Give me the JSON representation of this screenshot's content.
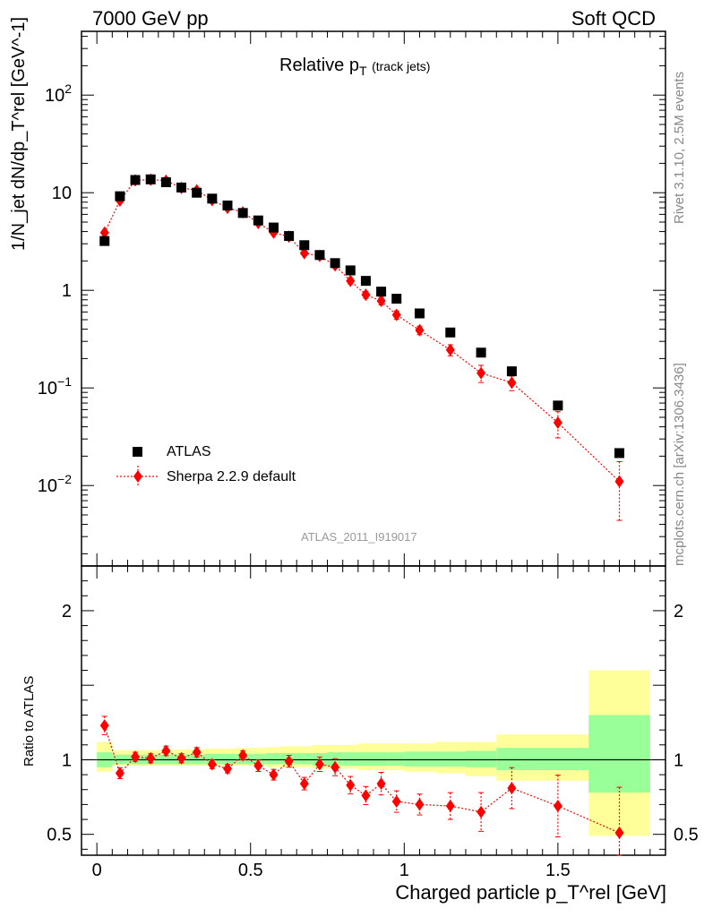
{
  "header": {
    "left": "7000 GeV pp",
    "right": "Soft QCD"
  },
  "side_text": {
    "top": "Rivet 3.1.10,  2.5M events",
    "bottom": "mcplots.cern.ch [arXiv:1306.3436]"
  },
  "title": {
    "main": "Relative p",
    "sub": "T",
    "suffix": "(track jets)"
  },
  "analysis_id": "ATLAS_2011_I919017",
  "y_label_main": "1/N_jet dN/dp_T^rel [GeV^-1]",
  "y_label_ratio": "Ratio to ATLAS",
  "x_label": "Charged particle p_T^rel [GeV]",
  "legend": {
    "data_label": "ATLAS",
    "mc_label": "Sherpa 2.2.9 default"
  },
  "colors": {
    "data": "#000000",
    "mc": "#ff0000",
    "band_inner": "#99ff99",
    "band_outer": "#ffff99"
  },
  "chart_data": [
    {
      "type": "scatter",
      "panel": "main",
      "yscale": "log",
      "xlim": [
        -0.05,
        1.85
      ],
      "ylim": [
        0.0015,
        450
      ],
      "x_ticks": [
        0,
        0.5,
        1,
        1.5
      ],
      "x_tick_labels": [
        "0",
        "0.5",
        "1",
        "1.5"
      ],
      "series": [
        {
          "name": "ATLAS",
          "marker": "square",
          "x": [
            0.025,
            0.075,
            0.125,
            0.175,
            0.225,
            0.275,
            0.325,
            0.375,
            0.425,
            0.475,
            0.525,
            0.575,
            0.625,
            0.675,
            0.725,
            0.775,
            0.825,
            0.875,
            0.925,
            0.975,
            1.05,
            1.15,
            1.25,
            1.35,
            1.5,
            1.7
          ],
          "y": [
            3.2,
            9.2,
            13.5,
            13.7,
            12.8,
            11.3,
            10.0,
            8.7,
            7.4,
            6.2,
            5.2,
            4.4,
            3.6,
            2.9,
            2.3,
            1.9,
            1.6,
            1.25,
            0.97,
            0.82,
            0.58,
            0.37,
            0.23,
            0.148,
            0.066,
            0.0215
          ]
        },
        {
          "name": "Sherpa 2.2.9 default",
          "marker": "diamond",
          "x": [
            0.025,
            0.075,
            0.125,
            0.175,
            0.225,
            0.275,
            0.325,
            0.375,
            0.425,
            0.475,
            0.525,
            0.575,
            0.625,
            0.675,
            0.725,
            0.775,
            0.825,
            0.875,
            0.925,
            0.975,
            1.05,
            1.15,
            1.25,
            1.35,
            1.5,
            1.7
          ],
          "y": [
            3.9,
            8.3,
            13.4,
            13.6,
            13.3,
            11.2,
            10.6,
            8.4,
            7.0,
            6.3,
            4.9,
            3.9,
            3.55,
            2.4,
            2.25,
            1.8,
            1.25,
            0.9,
            0.78,
            0.56,
            0.39,
            0.245,
            0.142,
            0.113,
            0.044,
            0.011
          ],
          "yerr": [
            0.05,
            0.04,
            0.03,
            0.03,
            0.03,
            0.03,
            0.03,
            0.03,
            0.03,
            0.03,
            0.04,
            0.04,
            0.04,
            0.05,
            0.05,
            0.06,
            0.07,
            0.08,
            0.09,
            0.1,
            0.1,
            0.13,
            0.2,
            0.17,
            0.3,
            0.6
          ]
        }
      ]
    },
    {
      "type": "scatter",
      "panel": "ratio",
      "xlim": [
        -0.05,
        1.85
      ],
      "ylim": [
        0.36,
        2.3
      ],
      "y_ticks": [
        0.5,
        1,
        2
      ],
      "y_tick_labels": [
        "0.5",
        "1",
        "2"
      ],
      "x_ticks": [
        0,
        0.5,
        1,
        1.5
      ],
      "x_tick_labels": [
        "0",
        "0.5",
        "1",
        "1.5"
      ],
      "bands": {
        "edges": [
          0.0,
          0.05,
          0.1,
          0.15,
          0.2,
          0.25,
          0.3,
          0.35,
          0.4,
          0.45,
          0.5,
          0.55,
          0.6,
          0.65,
          0.7,
          0.75,
          0.8,
          0.85,
          0.9,
          0.95,
          1.0,
          1.1,
          1.2,
          1.3,
          1.4,
          1.6,
          1.8
        ],
        "inner_lo": [
          0.95,
          0.97,
          0.97,
          0.97,
          0.97,
          0.97,
          0.97,
          0.97,
          0.97,
          0.97,
          0.97,
          0.97,
          0.97,
          0.97,
          0.96,
          0.96,
          0.96,
          0.96,
          0.96,
          0.96,
          0.955,
          0.955,
          0.95,
          0.93,
          0.93,
          0.78
        ],
        "inner_hi": [
          1.05,
          1.035,
          1.035,
          1.035,
          1.035,
          1.035,
          1.035,
          1.04,
          1.04,
          1.04,
          1.04,
          1.045,
          1.045,
          1.045,
          1.045,
          1.05,
          1.05,
          1.05,
          1.05,
          1.05,
          1.055,
          1.055,
          1.06,
          1.08,
          1.08,
          1.3
        ],
        "outer_lo": [
          0.92,
          0.96,
          0.96,
          0.96,
          0.96,
          0.96,
          0.96,
          0.96,
          0.96,
          0.96,
          0.96,
          0.95,
          0.95,
          0.95,
          0.94,
          0.94,
          0.94,
          0.93,
          0.93,
          0.93,
          0.92,
          0.91,
          0.89,
          0.86,
          0.86,
          0.49
        ],
        "outer_hi": [
          1.12,
          1.065,
          1.065,
          1.065,
          1.065,
          1.07,
          1.07,
          1.075,
          1.075,
          1.08,
          1.08,
          1.085,
          1.09,
          1.09,
          1.1,
          1.1,
          1.1,
          1.11,
          1.11,
          1.11,
          1.11,
          1.12,
          1.12,
          1.17,
          1.17,
          1.6
        ]
      },
      "series": [
        {
          "name": "Sherpa 2.2.9 default",
          "marker": "diamond",
          "x": [
            0.025,
            0.075,
            0.125,
            0.175,
            0.225,
            0.275,
            0.325,
            0.375,
            0.425,
            0.475,
            0.525,
            0.575,
            0.625,
            0.675,
            0.725,
            0.775,
            0.825,
            0.875,
            0.925,
            0.975,
            1.05,
            1.15,
            1.25,
            1.35,
            1.5,
            1.7
          ],
          "y": [
            1.23,
            0.91,
            1.02,
            1.01,
            1.06,
            1.01,
            1.05,
            0.97,
            0.94,
            1.03,
            0.96,
            0.9,
            0.99,
            0.84,
            0.97,
            0.95,
            0.83,
            0.76,
            0.84,
            0.72,
            0.7,
            0.69,
            0.65,
            0.81,
            0.69,
            0.51
          ],
          "yerr": [
            0.05,
            0.04,
            0.03,
            0.03,
            0.03,
            0.03,
            0.03,
            0.03,
            0.03,
            0.03,
            0.04,
            0.04,
            0.04,
            0.05,
            0.05,
            0.06,
            0.07,
            0.08,
            0.09,
            0.1,
            0.1,
            0.13,
            0.2,
            0.17,
            0.3,
            0.6
          ]
        }
      ]
    }
  ]
}
